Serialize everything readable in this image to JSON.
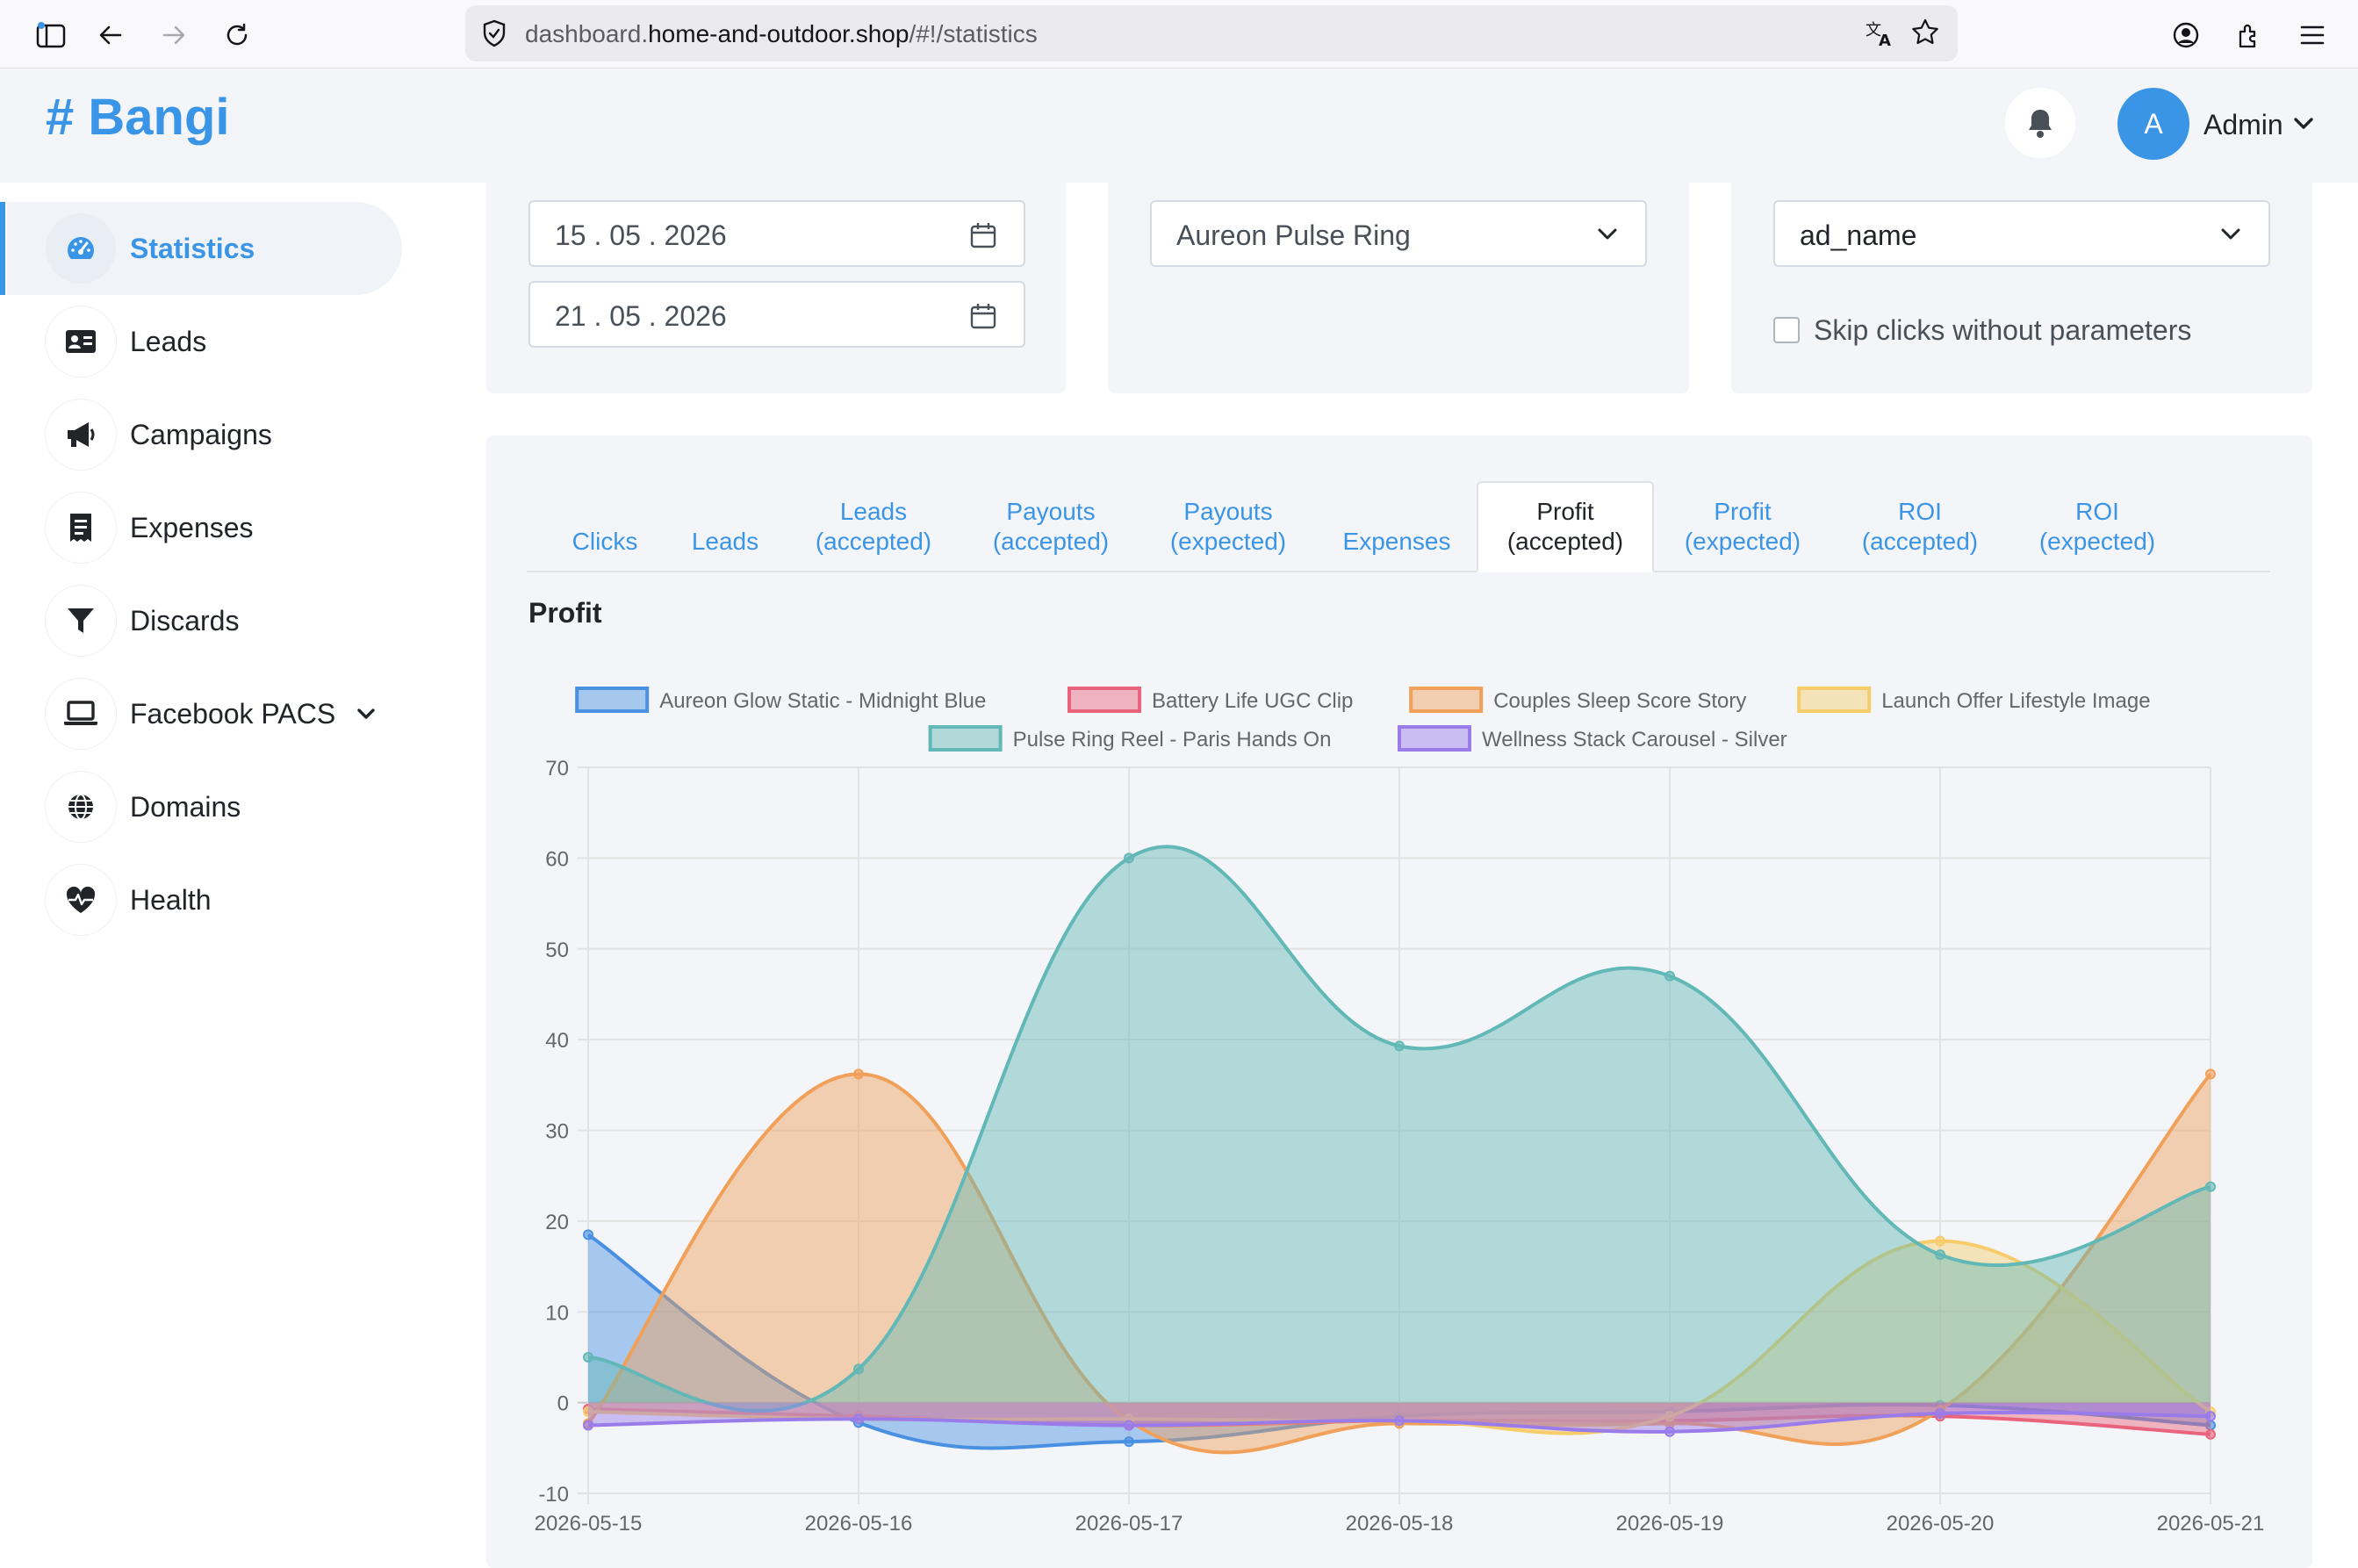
{
  "browser": {
    "url_prefix": "dashboard.",
    "url_domain": "home-and-outdoor.shop",
    "url_path": "/#!/statistics"
  },
  "brand": {
    "name": "# Bangi",
    "color": "#3b95e6"
  },
  "user": {
    "initial": "A",
    "name": "Admin"
  },
  "sidebar": {
    "items": [
      {
        "label": "Statistics",
        "icon": "gauge-icon",
        "active": true
      },
      {
        "label": "Leads",
        "icon": "id-card-icon"
      },
      {
        "label": "Campaigns",
        "icon": "megaphone-icon"
      },
      {
        "label": "Expenses",
        "icon": "receipt-icon"
      },
      {
        "label": "Discards",
        "icon": "filter-icon"
      },
      {
        "label": "Facebook PACS",
        "icon": "laptop-icon",
        "has_dropdown": true
      },
      {
        "label": "Domains",
        "icon": "globe-icon"
      },
      {
        "label": "Health",
        "icon": "heartbeat-icon"
      }
    ]
  },
  "filters": {
    "date_from": "15 . 05 . 2026",
    "date_to": "21 . 05 . 2026",
    "product_select": "Aureon Pulse Ring",
    "group_by_select": "ad_name",
    "skip_clicks_label": "Skip clicks without parameters",
    "skip_clicks_checked": false
  },
  "tabs": [
    {
      "label": "Clicks"
    },
    {
      "label": "Leads"
    },
    {
      "label": "Leads\n(accepted)"
    },
    {
      "label": "Payouts\n(accepted)"
    },
    {
      "label": "Payouts\n(expected)"
    },
    {
      "label": "Expenses"
    },
    {
      "label": "Profit\n(accepted)",
      "active": true
    },
    {
      "label": "Profit\n(expected)"
    },
    {
      "label": "ROI\n(accepted)"
    },
    {
      "label": "ROI\n(expected)"
    }
  ],
  "chart_title": "Profit",
  "chart_data": {
    "type": "area",
    "title": "Profit",
    "x": [
      "2026-05-15",
      "2026-05-16",
      "2026-05-17",
      "2026-05-18",
      "2026-05-19",
      "2026-05-20",
      "2026-05-21"
    ],
    "ylim": [
      -10,
      70
    ],
    "yticks": [
      -10,
      0,
      10,
      20,
      30,
      40,
      50,
      60,
      70
    ],
    "grid": true,
    "legend_position": "top",
    "series": [
      {
        "name": "Aureon Glow Static - Midnight Blue",
        "color": "#4a90e2",
        "values": [
          18.5,
          -2.2,
          -4.3,
          -1.5,
          -1.0,
          -0.3,
          -2.5
        ]
      },
      {
        "name": "Battery Life UGC Clip",
        "color": "#e8637b",
        "values": [
          -0.7,
          -1.5,
          -2.5,
          -2.0,
          -2.0,
          -1.5,
          -3.5
        ]
      },
      {
        "name": "Couples Sleep Score Story",
        "color": "#f0a058",
        "values": [
          -2.3,
          36.2,
          -2.0,
          -2.3,
          -2.3,
          -0.8,
          36.2
        ]
      },
      {
        "name": "Launch Offer Lifestyle Image",
        "color": "#f6cd6a",
        "values": [
          -1.0,
          -1.8,
          -1.8,
          -2.0,
          -1.5,
          17.8,
          -1.0
        ]
      },
      {
        "name": "Pulse Ring Reel - Paris Hands On",
        "color": "#62b8b6",
        "values": [
          5.0,
          3.7,
          60.0,
          39.3,
          47.0,
          16.3,
          23.8
        ]
      },
      {
        "name": "Wellness Stack Carousel - Silver",
        "color": "#9a7bea",
        "values": [
          -2.5,
          -1.8,
          -2.5,
          -2.0,
          -3.2,
          -1.2,
          -1.5
        ]
      }
    ]
  }
}
